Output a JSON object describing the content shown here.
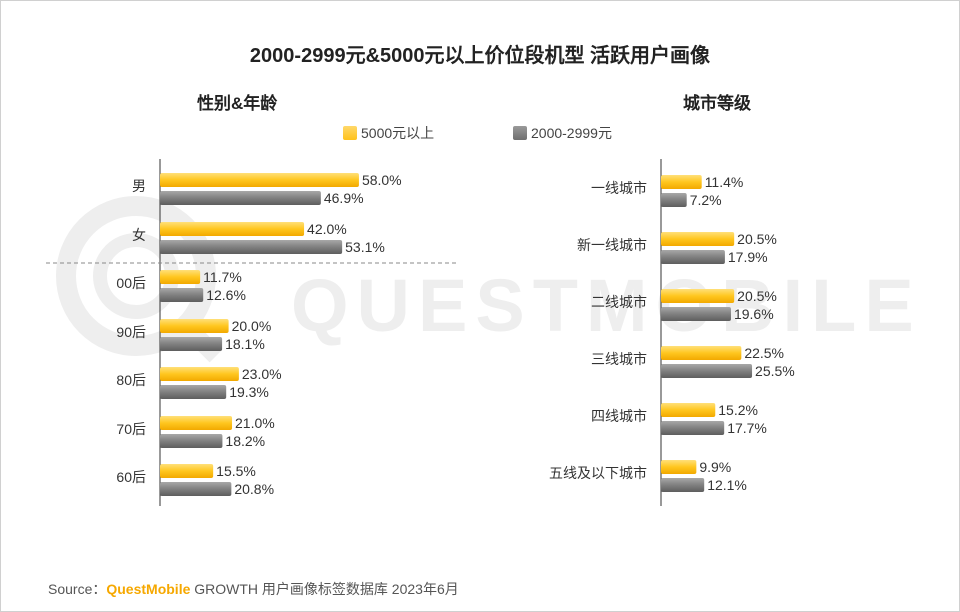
{
  "title": "2000-2999元&5000元以上价位段机型 活跃用户画像",
  "left_panel_title": "性别&年龄",
  "right_panel_title": "城市等级",
  "legend": [
    "5000元以上",
    "2000-2999元"
  ],
  "watermark": "QUESTMOBILE",
  "source": {
    "label": "Source：",
    "brand": "QuestMobile",
    "rest": "GROWTH 用户画像标签数据库 2023年6月"
  },
  "colors": {
    "series_a": "#FFC21B",
    "series_b": "#7F7F7F",
    "watermark": "#EEEEEE"
  },
  "chart_data": [
    {
      "type": "bar",
      "orientation": "horizontal",
      "title": "性别&年龄",
      "categories": [
        "男",
        "女",
        "00后",
        "90后",
        "80后",
        "70后",
        "60后"
      ],
      "series": [
        {
          "name": "5000元以上",
          "values": [
            58.0,
            42.0,
            11.7,
            20.0,
            23.0,
            21.0,
            15.5
          ]
        },
        {
          "name": "2000-2999元",
          "values": [
            46.9,
            53.1,
            12.6,
            18.1,
            19.3,
            18.2,
            20.8
          ]
        }
      ],
      "value_labels": [
        [
          "58.0%",
          "42.0%",
          "11.7%",
          "20.0%",
          "23.0%",
          "21.0%",
          "15.5%"
        ],
        [
          "46.9%",
          "53.1%",
          "12.6%",
          "18.1%",
          "19.3%",
          "18.2%",
          "20.8%"
        ]
      ],
      "legend": "top",
      "grid": false
    },
    {
      "type": "bar",
      "orientation": "horizontal",
      "title": "城市等级",
      "categories": [
        "一线城市",
        "新一线城市",
        "二线城市",
        "三线城市",
        "四线城市",
        "五线及以下城市"
      ],
      "series": [
        {
          "name": "5000元以上",
          "values": [
            11.4,
            20.5,
            20.5,
            22.5,
            15.2,
            9.9
          ]
        },
        {
          "name": "2000-2999元",
          "values": [
            7.2,
            17.9,
            19.6,
            25.5,
            17.7,
            12.1
          ]
        }
      ],
      "value_labels": [
        [
          "11.4%",
          "20.5%",
          "20.5%",
          "22.5%",
          "15.2%",
          "9.9%"
        ],
        [
          "7.2%",
          "17.9%",
          "19.6%",
          "25.5%",
          "17.7%",
          "12.1%"
        ]
      ],
      "legend": "top",
      "grid": false
    }
  ]
}
